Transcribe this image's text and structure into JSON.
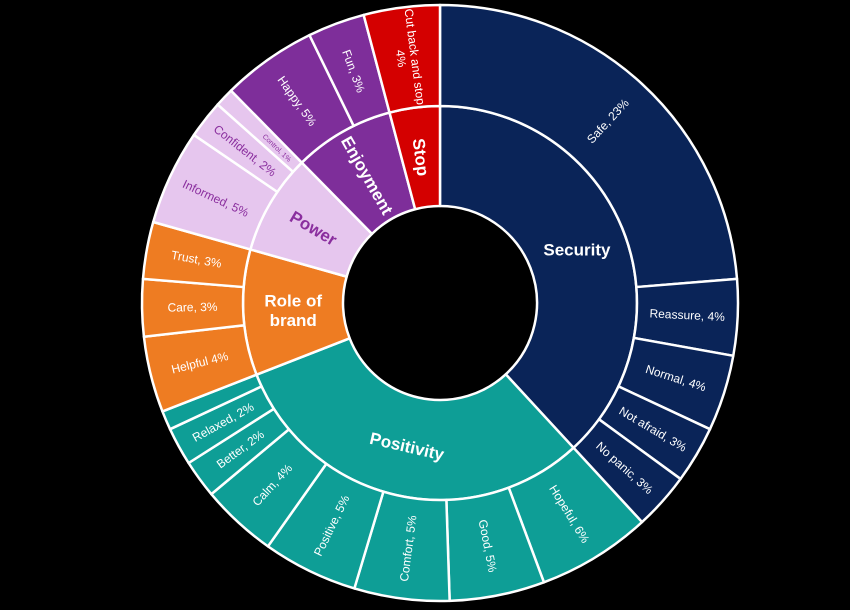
{
  "chart_data": {
    "type": "sunburst",
    "title": "",
    "categories": [
      {
        "name": "Security",
        "color": "#0A2458",
        "text_color": "#ffffff",
        "children": [
          {
            "label": "Safe, 23%",
            "value": 23
          },
          {
            "label": "Reassure, 4%",
            "value": 4
          },
          {
            "label": "Normal, 4%",
            "value": 4
          },
          {
            "label": "Not afraid, 3%",
            "value": 3
          },
          {
            "label": "No panic, 3%",
            "value": 3
          }
        ]
      },
      {
        "name": "Positivity",
        "color": "#0E9E96",
        "text_color": "#ffffff",
        "children": [
          {
            "label": "Hopeful, 6%",
            "value": 6
          },
          {
            "label": "Good, 5%",
            "value": 5
          },
          {
            "label": "Comfort, 5%",
            "value": 5
          },
          {
            "label": "Positive, 5%",
            "value": 5
          },
          {
            "label": "Calm, 4%",
            "value": 4
          },
          {
            "label": "Better, 2%",
            "value": 2
          },
          {
            "label": "Relaxed, 2%",
            "value": 2
          },
          {
            "label": "",
            "value": 1
          }
        ]
      },
      {
        "name": "Role of brand",
        "name_lines": [
          "Role of",
          "brand"
        ],
        "color": "#EE7C22",
        "text_color": "#ffffff",
        "children": [
          {
            "label": "Helpful 4%",
            "value": 4
          },
          {
            "label": "Care, 3%",
            "value": 3
          },
          {
            "label": "Trust, 3%",
            "value": 3
          }
        ]
      },
      {
        "name": "Power",
        "color": "#E6C6EE",
        "text_color": "#8A2E9E",
        "children": [
          {
            "label": "Informed, 5%",
            "value": 5
          },
          {
            "label": "Confident, 2%",
            "value": 2
          },
          {
            "label": "Control, 1%",
            "value": 1
          }
        ]
      },
      {
        "name": "Enjoyment",
        "color": "#7E2E9A",
        "text_color": "#ffffff",
        "children": [
          {
            "label": "Happy, 5%",
            "value": 5
          },
          {
            "label": "Fun, 3%",
            "value": 3
          }
        ]
      },
      {
        "name": "Stop",
        "color": "#D40000",
        "text_color": "#ffffff",
        "children": [
          {
            "label": "Cut back and stop, 4%",
            "label_lines": [
              "Cut back and stop",
              "4%"
            ],
            "value": 4
          }
        ]
      }
    ]
  }
}
